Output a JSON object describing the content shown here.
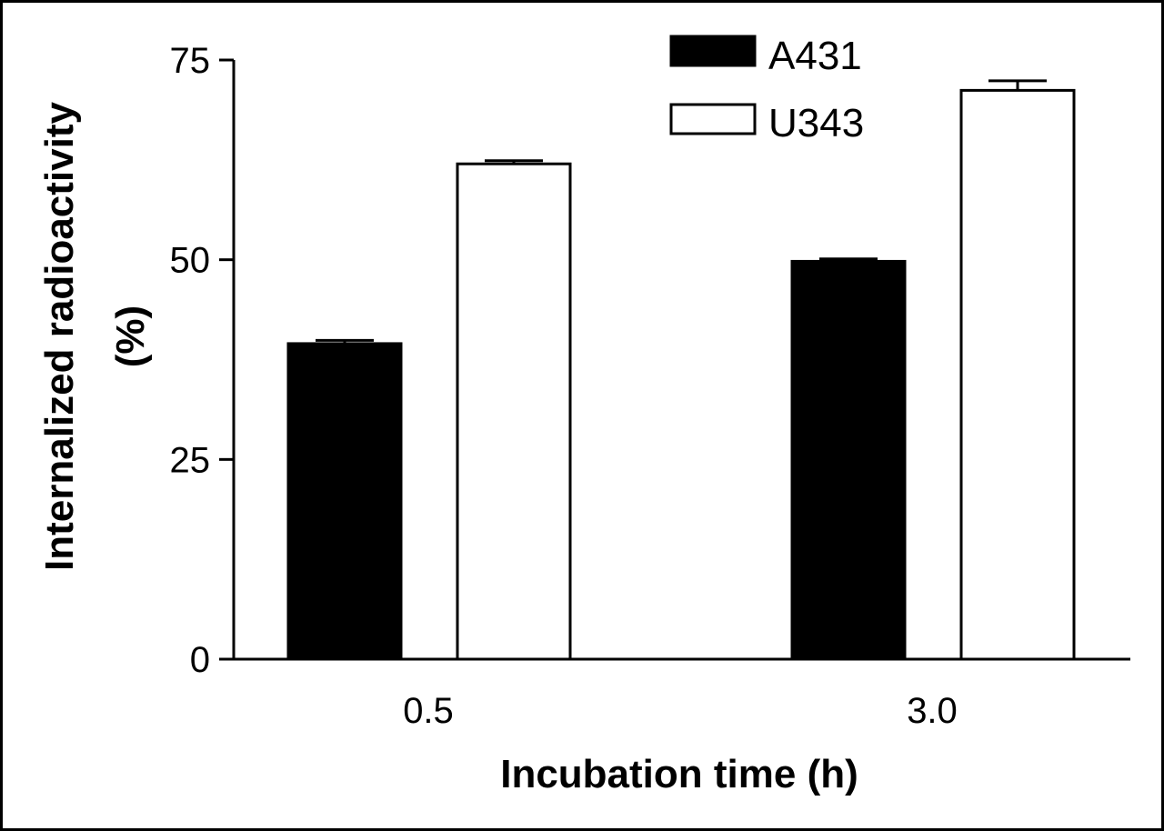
{
  "chart_data": {
    "type": "bar",
    "categories": [
      "0.5",
      "3.0"
    ],
    "series": [
      {
        "name": "A431",
        "values": [
          39.5,
          49.8
        ],
        "errors": [
          0.4,
          0.3
        ],
        "color": "#000000"
      },
      {
        "name": "U343",
        "values": [
          62.0,
          71.2
        ],
        "errors": [
          0.4,
          1.2
        ],
        "color": "#ffffff"
      }
    ],
    "xlabel": "Incubation time (h)",
    "ylabel_line1": "Internalized radioactivity",
    "ylabel_line2": "(%)",
    "ylim": [
      0,
      75
    ],
    "yticks": [
      "0",
      "25",
      "50",
      "75"
    ],
    "legend_position": "top-right",
    "grid": false
  }
}
